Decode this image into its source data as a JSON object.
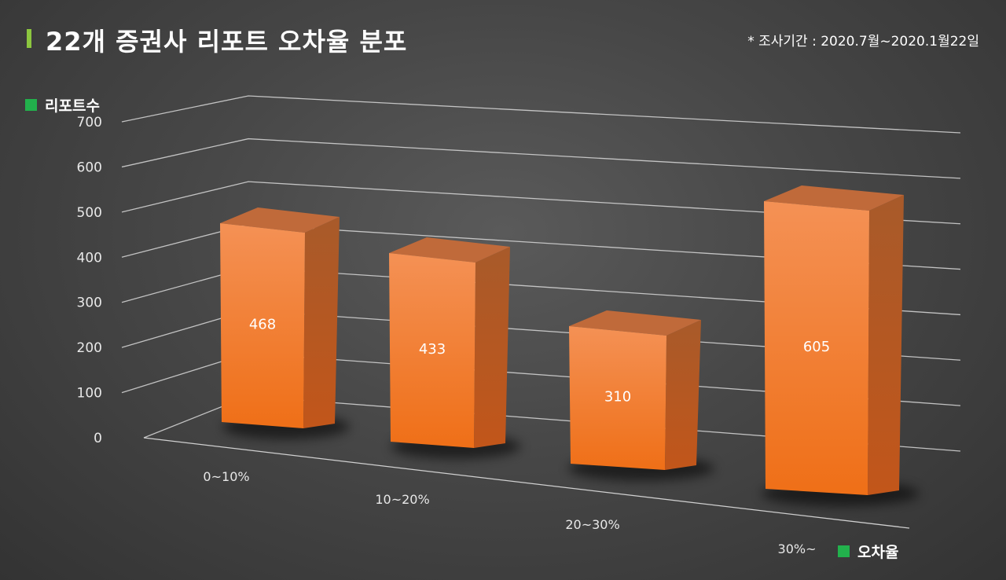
{
  "header": {
    "title": "22개 증권사 리포트 오차율 분포",
    "note": "* 조사기간 : 2020.7월~2020.1월22일"
  },
  "colors": {
    "accent_bar": "#8cc63f",
    "legend_square": "#22b14c",
    "bar_front": "#f27a26",
    "bar_side": "#b75818",
    "bar_top": "#c06a3a",
    "gridline": "#d0d0d0"
  },
  "chart_data": {
    "type": "bar",
    "categories": [
      "0~10%",
      "10~20%",
      "20~30%",
      "30%~"
    ],
    "values": [
      468,
      433,
      310,
      605
    ],
    "title": "22개 증권사 리포트 오차율 분포",
    "xlabel": "오차율",
    "ylabel": "리포트수",
    "ylim": [
      0,
      700
    ],
    "yticks": [
      0,
      100,
      200,
      300,
      400,
      500,
      600,
      700
    ],
    "grid": true,
    "style": "3d-column"
  }
}
